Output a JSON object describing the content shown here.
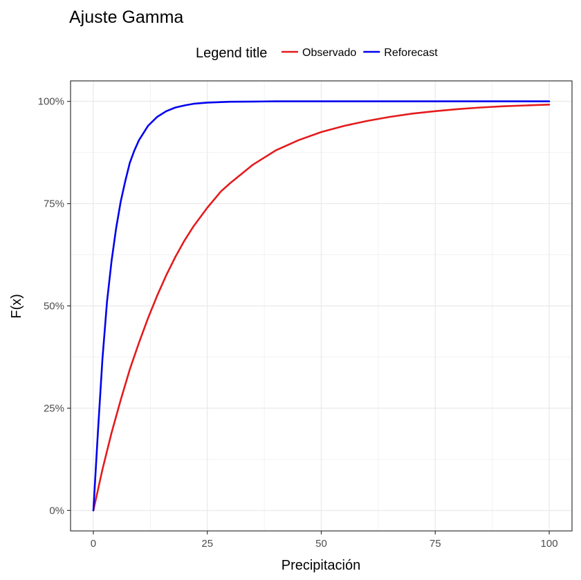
{
  "chart_data": {
    "type": "line",
    "title": "Ajuste Gamma",
    "xlabel": "Precipitación",
    "ylabel": "F(x)",
    "xlim": [
      -5,
      105
    ],
    "ylim": [
      -0.05,
      1.05
    ],
    "x_ticks": [
      0,
      25,
      50,
      75,
      100
    ],
    "y_ticks": [
      0,
      0.25,
      0.5,
      0.75,
      1.0
    ],
    "x_tick_labels": [
      "0",
      "25",
      "50",
      "75",
      "100"
    ],
    "y_tick_labels": [
      "0%",
      "25%",
      "50%",
      "75%",
      "100%"
    ],
    "grid": true,
    "legend": {
      "title": "Legend title",
      "position": "top"
    },
    "series": [
      {
        "name": "Observado",
        "color": "#e41a1c",
        "x": [
          0,
          2,
          4,
          6,
          8,
          10,
          12,
          14,
          16,
          18,
          20,
          22,
          25,
          28,
          30,
          35,
          40,
          45,
          50,
          55,
          60,
          65,
          70,
          75,
          80,
          85,
          90,
          95,
          100
        ],
        "y": [
          0.0,
          0.1,
          0.19,
          0.27,
          0.345,
          0.41,
          0.47,
          0.525,
          0.575,
          0.62,
          0.66,
          0.695,
          0.74,
          0.78,
          0.8,
          0.845,
          0.88,
          0.905,
          0.925,
          0.94,
          0.952,
          0.962,
          0.97,
          0.976,
          0.981,
          0.985,
          0.988,
          0.99,
          0.992
        ]
      },
      {
        "name": "Reforecast",
        "color": "#0000ee",
        "x": [
          0,
          1,
          2,
          3,
          4,
          5,
          6,
          7,
          8,
          9,
          10,
          12,
          14,
          16,
          18,
          20,
          22,
          25,
          30,
          35,
          40,
          50,
          60,
          70,
          80,
          90,
          100
        ],
        "y": [
          0.0,
          0.19,
          0.37,
          0.51,
          0.61,
          0.69,
          0.755,
          0.805,
          0.85,
          0.88,
          0.905,
          0.94,
          0.962,
          0.976,
          0.985,
          0.99,
          0.994,
          0.997,
          0.999,
          0.9995,
          1.0,
          1.0,
          1.0,
          1.0,
          1.0,
          1.0,
          1.0
        ]
      }
    ]
  }
}
